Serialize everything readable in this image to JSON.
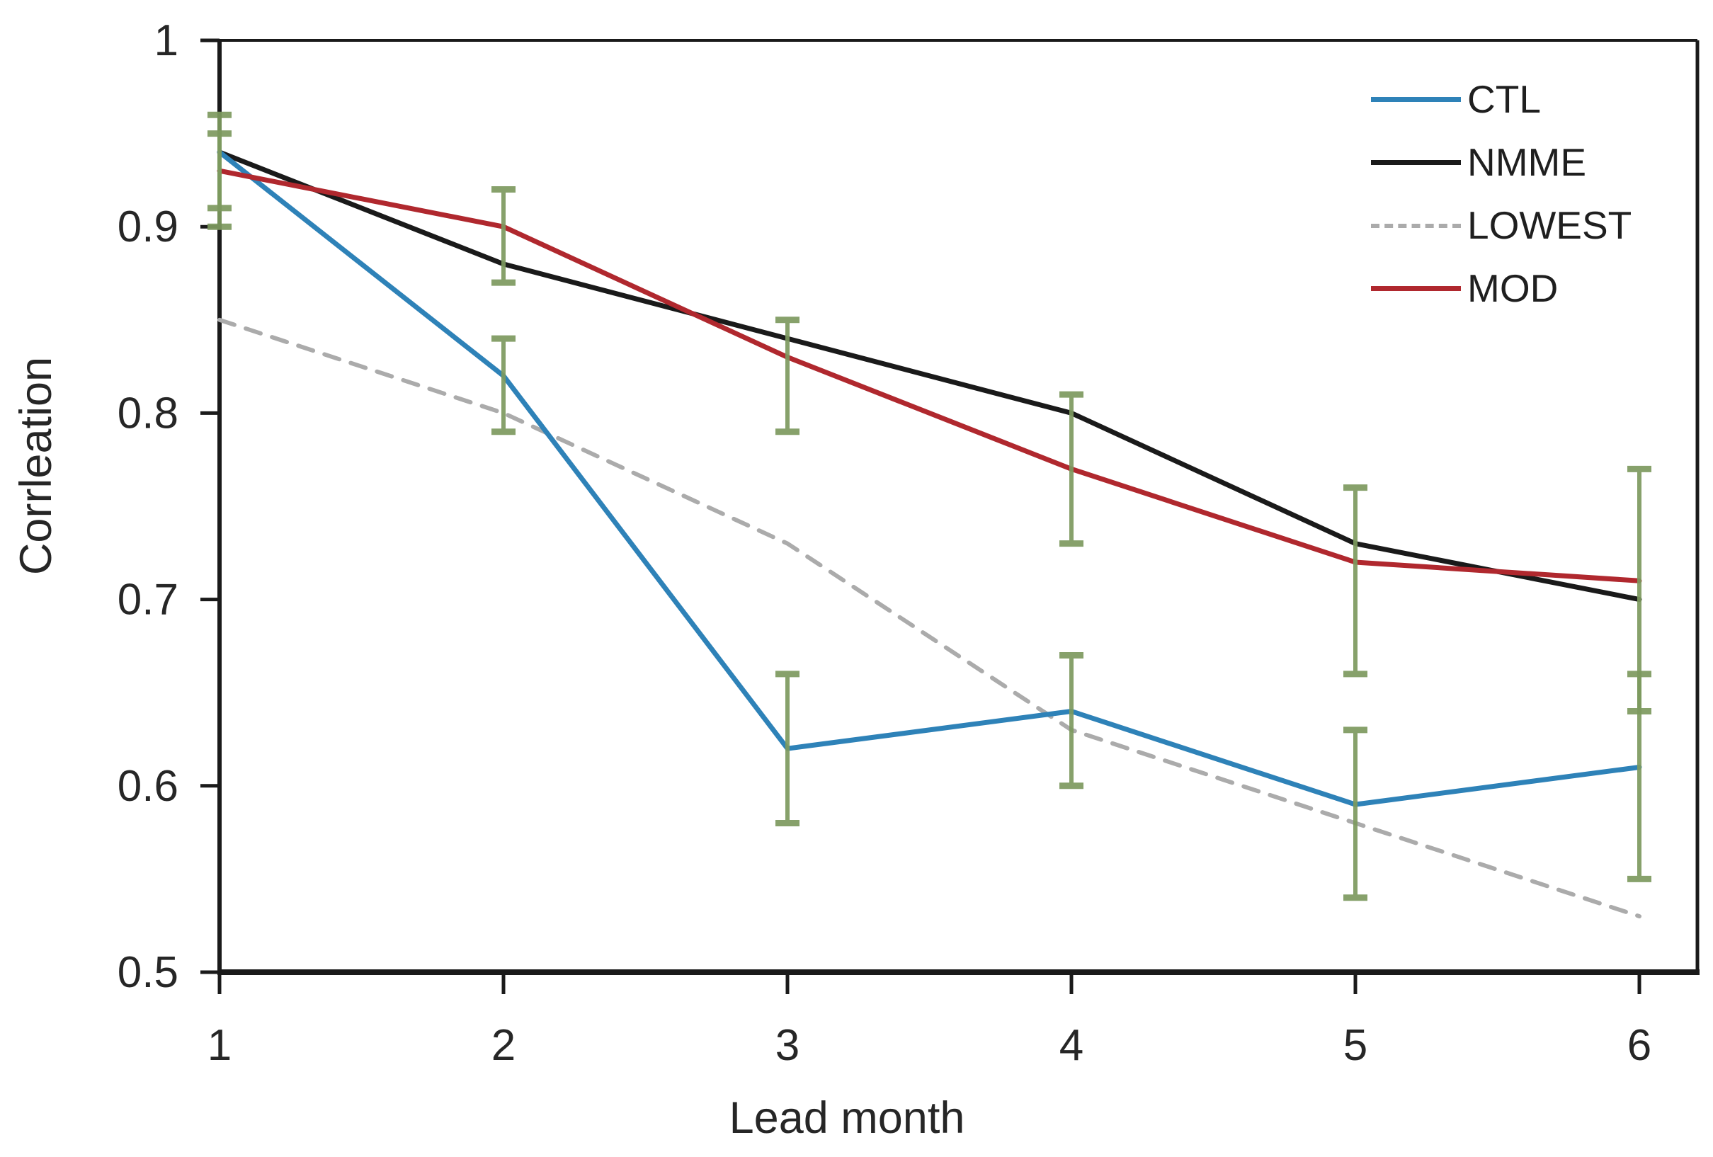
{
  "chart_data": {
    "type": "line",
    "title": "",
    "xlabel": "Lead month",
    "ylabel": "Corrleation",
    "x": [
      1,
      2,
      3,
      4,
      5,
      6
    ],
    "xlim": [
      1,
      6
    ],
    "ylim": [
      0.5,
      1.0
    ],
    "xticks": {
      "values": [
        1,
        2,
        3,
        4,
        5,
        6
      ],
      "labels": [
        "1",
        "2",
        "3",
        "4",
        "5",
        "6"
      ]
    },
    "yticks": {
      "values": [
        1.0,
        0.9,
        0.8,
        0.7,
        0.6,
        0.5
      ],
      "labels": [
        "1",
        "0.9",
        "0.8",
        "0.7",
        "0.6",
        "0.5"
      ]
    },
    "grid": false,
    "legend_position": "top-right-inside",
    "series": [
      {
        "name": "CTL",
        "color": "#2e82b8",
        "style": "solid",
        "values": [
          0.94,
          0.82,
          0.62,
          0.64,
          0.59,
          0.61
        ]
      },
      {
        "name": "NMME",
        "color": "#1a1a1a",
        "style": "solid",
        "values": [
          0.94,
          0.88,
          0.84,
          0.8,
          0.73,
          0.7
        ]
      },
      {
        "name": "LOWEST",
        "color": "#ababab",
        "style": "dashed",
        "values": [
          0.85,
          0.8,
          0.73,
          0.63,
          0.58,
          0.53
        ]
      },
      {
        "name": "MOD",
        "color": "#b0282e",
        "style": "solid",
        "values": [
          0.93,
          0.9,
          0.83,
          0.77,
          0.72,
          0.71
        ]
      }
    ],
    "error_bars": {
      "color": "#7d9a5f",
      "points": [
        {
          "x": 1,
          "low": 0.91,
          "high": 0.96
        },
        {
          "x": 1,
          "low": 0.9,
          "high": 0.95
        },
        {
          "x": 2,
          "low": 0.87,
          "high": 0.92
        },
        {
          "x": 2,
          "low": 0.79,
          "high": 0.84
        },
        {
          "x": 3,
          "low": 0.79,
          "high": 0.85
        },
        {
          "x": 3,
          "low": 0.58,
          "high": 0.66
        },
        {
          "x": 4,
          "low": 0.73,
          "high": 0.81
        },
        {
          "x": 4,
          "low": 0.6,
          "high": 0.67
        },
        {
          "x": 5,
          "low": 0.66,
          "high": 0.76
        },
        {
          "x": 5,
          "low": 0.54,
          "high": 0.63
        },
        {
          "x": 6,
          "low": 0.64,
          "high": 0.77
        },
        {
          "x": 6,
          "low": 0.55,
          "high": 0.66
        }
      ]
    }
  }
}
